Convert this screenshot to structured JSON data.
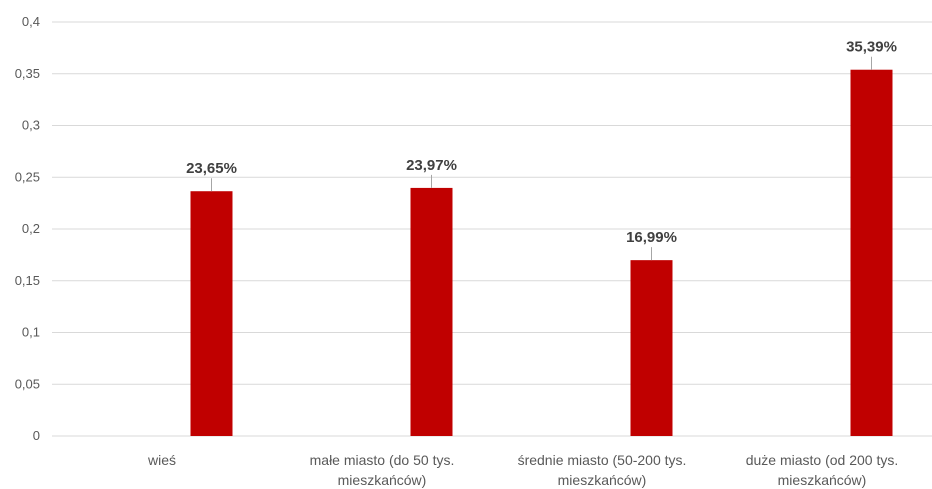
{
  "chart_data": {
    "type": "bar",
    "categories": [
      [
        "wieś"
      ],
      [
        "małe miasto (do 50 tys.",
        "mieszkańców)"
      ],
      [
        "średnie miasto (50-200 tys.",
        "mieszkańców)"
      ],
      [
        "duże miasto (od 200 tys.",
        "mieszkańców)"
      ]
    ],
    "values": [
      0.2365,
      0.2397,
      0.1699,
      0.3539
    ],
    "data_labels": [
      "23,65%",
      "23,97%",
      "16,99%",
      "35,39%"
    ],
    "ylim": [
      0,
      0.4
    ],
    "yticks": [
      "0",
      "0,05",
      "0,1",
      "0,15",
      "0,2",
      "0,25",
      "0,3",
      "0,35",
      "0,4"
    ],
    "title": "",
    "xlabel": "",
    "ylabel": "",
    "grid": true,
    "legend": "none",
    "colors": {
      "bar": "#C00000",
      "grid": "#D9D9D9",
      "axis_text": "#595959",
      "label_text": "#404040"
    }
  }
}
